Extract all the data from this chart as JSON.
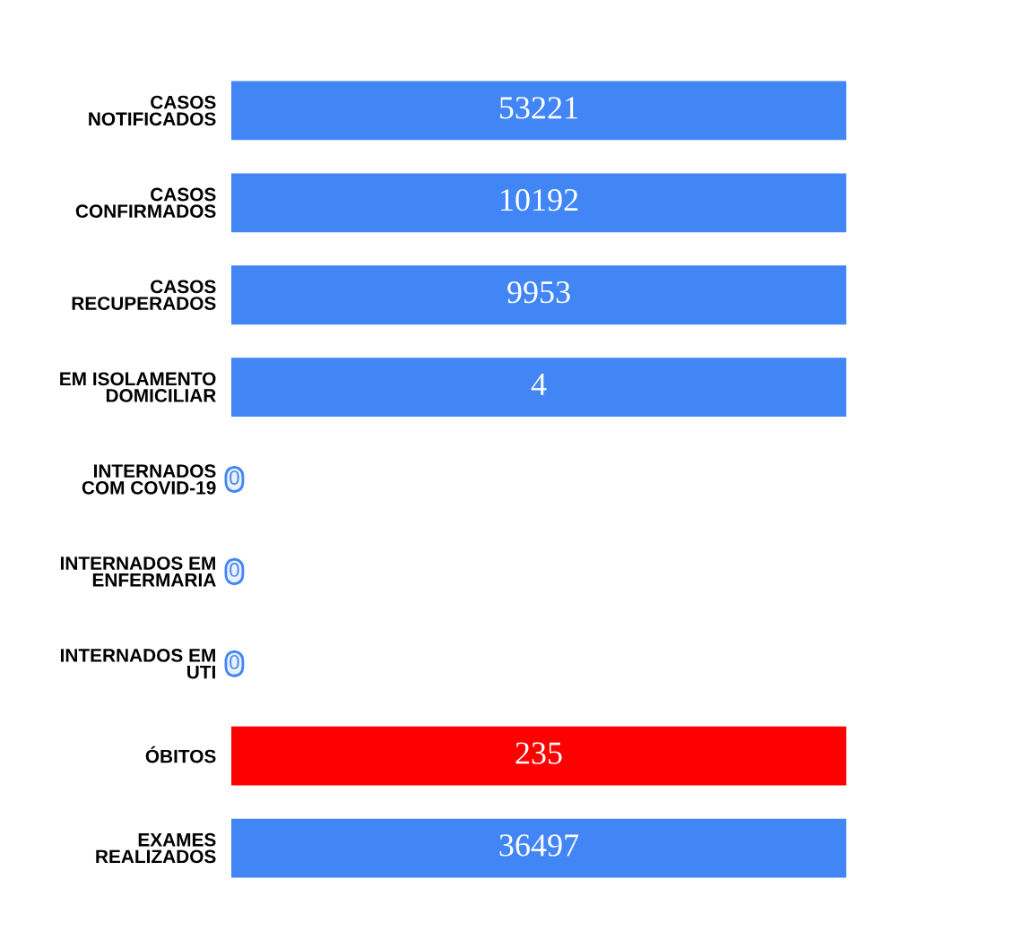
{
  "chart_data": {
    "type": "other",
    "categories": [
      "CASOS\nNOTIFICADOS",
      "CASOS\nCONFIRMADOS",
      "CASOS\nRECUPERADOS",
      "EM ISOLAMENTO\nDOMICILIAR",
      "INTERNADOS\nCOM COVID-19",
      "INTERNADOS EM\nENFERMARIA",
      "INTERNADOS EM\nUTI",
      "ÓBITOS",
      "EXAMES\nREALIZADOS"
    ],
    "values": [
      53221,
      10192,
      9953,
      4,
      0,
      0,
      0,
      235,
      36497
    ],
    "colors": [
      "#4285f4",
      "#4285f4",
      "#4285f4",
      "#4285f4",
      "#4285f4",
      "#4285f4",
      "#4285f4",
      "#ff0000",
      "#4285f4"
    ],
    "data_labels": true
  }
}
